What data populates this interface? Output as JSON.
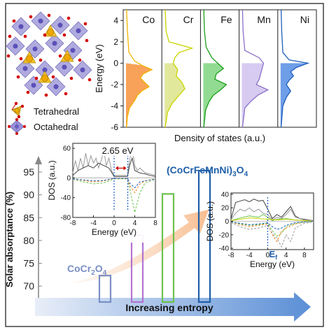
{
  "figure": {
    "frame_color": "#333333",
    "structure_legend": [
      {
        "label": "Tetrahedral",
        "color": "#e8b020",
        "icon": "tetrahedron-icon"
      },
      {
        "label": "Octahedral",
        "color": "#7a6fc4",
        "icon": "octahedron-icon"
      }
    ]
  },
  "chart_data": [
    {
      "type": "line",
      "title": "",
      "xlabel": "Density of states (a.u.)",
      "ylabel": "Energy (eV)",
      "ylim": [
        -6,
        5
      ],
      "yticks": [
        4,
        2,
        0,
        -2,
        -4,
        -6
      ],
      "panels": [
        {
          "name": "Co",
          "color": "#f0b400",
          "fill": "#f58220",
          "energy": [
            5,
            3,
            1,
            0.2,
            -0.2,
            -0.6,
            -1.0,
            -1.4,
            -1.8,
            -2.2,
            -2.6,
            -3.0,
            -3.5,
            -4.2,
            -5,
            -6
          ],
          "dos": [
            0.02,
            0.05,
            0.1,
            0.3,
            0.55,
            0.9,
            0.6,
            0.5,
            0.65,
            0.8,
            0.55,
            0.4,
            0.3,
            0.12,
            0.05,
            0.02
          ]
        },
        {
          "name": "Cr",
          "color": "#c8d400",
          "fill": "#d8e07a",
          "energy": [
            5,
            3,
            2,
            1.4,
            1.0,
            0.5,
            0,
            -0.6,
            -1.2,
            -1.8,
            -2.4,
            -3.0,
            -3.8,
            -4.6,
            -6
          ],
          "dos": [
            0.02,
            0.05,
            0.15,
            0.95,
            0.5,
            0.35,
            0.3,
            0.45,
            0.4,
            0.6,
            0.7,
            0.5,
            0.25,
            0.1,
            0.02
          ]
        },
        {
          "name": "Fe",
          "color": "#1a9e1a",
          "fill": "#6ecf6e",
          "energy": [
            5,
            3,
            1.5,
            0.5,
            0,
            -0.5,
            -1.0,
            -1.5,
            -2.0,
            -2.5,
            -3.0,
            -3.6,
            -4.4,
            -6
          ],
          "dos": [
            0.02,
            0.04,
            0.1,
            0.3,
            0.5,
            0.7,
            0.45,
            0.4,
            0.8,
            0.6,
            0.35,
            0.2,
            0.08,
            0.02
          ]
        },
        {
          "name": "Mn",
          "color": "#8a6fc8",
          "fill": "#c9b9ec",
          "energy": [
            5,
            3,
            1.2,
            0.5,
            0,
            -0.5,
            -1.0,
            -1.5,
            -2.0,
            -2.5,
            -3.0,
            -3.6,
            -4.2,
            -6
          ],
          "dos": [
            0.02,
            0.04,
            0.1,
            0.6,
            0.75,
            0.7,
            0.65,
            0.6,
            0.5,
            0.9,
            0.55,
            0.3,
            0.1,
            0.02
          ]
        },
        {
          "name": "Ni",
          "color": "#1f5fbf",
          "fill": "#3d7de0",
          "energy": [
            5,
            3,
            1.0,
            0.3,
            0,
            -0.4,
            -0.8,
            -1.2,
            -1.6,
            -2.0,
            -2.6,
            -3.2,
            -4.0,
            -6
          ],
          "dos": [
            0.02,
            0.04,
            0.08,
            0.3,
            0.95,
            0.55,
            0.35,
            0.45,
            0.3,
            0.2,
            0.35,
            0.2,
            0.08,
            0.02
          ]
        }
      ]
    },
    {
      "type": "bar",
      "title": "",
      "ylabel": "Solar absorptance (%)",
      "xlabel": "",
      "ylim": [
        66.5,
        97
      ],
      "yticks": [
        95,
        90,
        85,
        80,
        75,
        70
      ],
      "categories": [
        "CoCr2O4",
        "",
        "",
        "(CoCrFeMnNi)3O4"
      ],
      "labels": [
        {
          "text": "CoCr",
          "sub": "2",
          "text2": "O",
          "sub2": "4",
          "color": "#7a8fc4"
        },
        {
          "text": "(CoCrFeMnNi)",
          "sub": "3",
          "text2": "O",
          "sub2": "4",
          "color": "#1f5fa8"
        }
      ],
      "values": [
        72.3,
        81.1,
        90.2,
        95.3
      ],
      "colors": [
        "#7a8fc4",
        "#b373d1",
        "#6cc24a",
        "#1f5fa8"
      ],
      "arrow_label": "Increasing entropy"
    },
    {
      "type": "line",
      "title": "",
      "xlabel": "Energy (eV)",
      "ylabel": "DOS (a.u.)",
      "xlim": [
        -8,
        8
      ],
      "ylim": [
        -80,
        70
      ],
      "xticks": [
        -8,
        -4,
        0,
        4,
        8
      ],
      "yticks": [
        60,
        0,
        -40,
        -80
      ],
      "annotation": "2.65 eV",
      "series": [
        {
          "color": "#999999",
          "dash": false,
          "x": [
            -8,
            -7.5,
            -7,
            -6.5,
            -6,
            -5.5,
            -5,
            -4.5,
            -4,
            -3.5,
            -3,
            -2.5,
            -2,
            -1.5,
            -1,
            -0.5,
            0,
            2.6,
            3,
            3.5,
            4,
            4.5,
            5,
            6,
            7,
            8
          ],
          "y": [
            10,
            35,
            15,
            40,
            20,
            50,
            25,
            45,
            30,
            40,
            20,
            35,
            55,
            25,
            40,
            15,
            5,
            5,
            35,
            60,
            25,
            15,
            20,
            10,
            8,
            5
          ]
        },
        {
          "color": "#444444",
          "dash": false,
          "x": [
            -8,
            -7,
            -6,
            -5,
            -4,
            -3,
            -2,
            -1,
            0,
            2.6,
            3,
            3.5,
            4,
            5,
            6,
            7,
            8
          ],
          "y": [
            5,
            15,
            20,
            25,
            20,
            30,
            25,
            20,
            3,
            3,
            25,
            40,
            15,
            10,
            8,
            5,
            3
          ]
        },
        {
          "color": "#6cc24a",
          "dash": true,
          "x": [
            -8,
            -6,
            -4,
            -2,
            0,
            2.6,
            3,
            3.5,
            4,
            5,
            6,
            8
          ],
          "y": [
            -3,
            -8,
            -12,
            -10,
            -2,
            -2,
            -20,
            -45,
            -70,
            -30,
            -10,
            -3
          ]
        },
        {
          "color": "#f58220",
          "dash": true,
          "x": [
            -8,
            -6,
            -4,
            -2,
            0,
            2.6,
            3,
            4,
            5,
            6,
            8
          ],
          "y": [
            -2,
            -5,
            -8,
            -6,
            -1,
            -1,
            -15,
            -30,
            -12,
            -6,
            -2
          ]
        },
        {
          "color": "#1f5fbf",
          "dash": true,
          "x": [
            -8,
            -6,
            -4,
            -2,
            0,
            2.6,
            3,
            4,
            5,
            8
          ],
          "y": [
            -2,
            -4,
            -6,
            -5,
            -1,
            -1,
            -10,
            -20,
            -8,
            -2
          ]
        }
      ]
    },
    {
      "type": "line",
      "title": "",
      "xlabel": "Energy (eV)",
      "ylabel": "DOS (a.u.)",
      "xlim": [
        -8,
        10
      ],
      "ylim": [
        -42,
        42
      ],
      "xticks": [
        -8,
        -4,
        0,
        4,
        8
      ],
      "yticks": [
        40,
        20,
        0,
        -20,
        -40
      ],
      "annotation": "E",
      "annotation_sub": "f",
      "series": [
        {
          "color": "#444444",
          "dash": false,
          "x": [
            -8,
            -7,
            -6,
            -5,
            -4,
            -3,
            -2,
            -1,
            0,
            1,
            2,
            3,
            4,
            5,
            6,
            7,
            8,
            9,
            10
          ],
          "y": [
            3,
            28,
            30,
            32,
            29,
            33,
            30,
            31,
            18,
            4,
            10,
            6,
            14,
            22,
            8,
            4,
            3,
            2,
            1
          ]
        },
        {
          "color": "#999999",
          "dash": false,
          "x": [
            -8,
            -7,
            -6,
            -5,
            -4,
            -3,
            -2,
            -1,
            0,
            1,
            2,
            3,
            4,
            5,
            6,
            8,
            10
          ],
          "y": [
            2,
            12,
            18,
            15,
            20,
            14,
            18,
            12,
            10,
            2,
            6,
            4,
            10,
            18,
            6,
            2,
            1
          ]
        },
        {
          "color": "#6cc24a",
          "dash": false,
          "x": [
            -8,
            -6,
            -4,
            -2,
            -1,
            0,
            1,
            2,
            4,
            6,
            8,
            10
          ],
          "y": [
            1,
            5,
            8,
            6,
            10,
            6,
            1,
            3,
            4,
            2,
            1,
            0
          ]
        },
        {
          "color": "#c8d400",
          "dash": false,
          "x": [
            -8,
            -6,
            -4,
            -2,
            0,
            2,
            4,
            6,
            8,
            10
          ],
          "y": [
            1,
            3,
            5,
            4,
            3,
            2,
            3,
            2,
            1,
            0
          ]
        },
        {
          "color": "#f58220",
          "dash": true,
          "x": [
            -8,
            -6,
            -4,
            -2,
            0,
            1,
            2,
            3,
            4,
            6,
            8,
            10
          ],
          "y": [
            -1,
            -5,
            -8,
            -6,
            -4,
            -20,
            -30,
            -15,
            -10,
            -4,
            -1,
            0
          ]
        },
        {
          "color": "#6cc24a",
          "dash": true,
          "x": [
            -8,
            -6,
            -4,
            -2,
            0,
            1,
            2,
            3,
            4,
            6,
            8,
            10
          ],
          "y": [
            -1,
            -4,
            -6,
            -5,
            -3,
            -14,
            -22,
            -18,
            -8,
            -3,
            -1,
            0
          ]
        },
        {
          "color": "#1f5fbf",
          "dash": true,
          "x": [
            -8,
            -6,
            -4,
            -2,
            0,
            1,
            2,
            3,
            4,
            6,
            8,
            10
          ],
          "y": [
            -1,
            -3,
            -5,
            -4,
            -2,
            -8,
            -12,
            -10,
            -6,
            -2,
            -1,
            0
          ]
        },
        {
          "color": "#999999",
          "dash": true,
          "x": [
            -8,
            -6,
            -4,
            -2,
            0,
            1,
            2,
            3,
            4,
            5,
            6,
            8,
            10
          ],
          "y": [
            -2,
            -8,
            -12,
            -10,
            -6,
            -18,
            -25,
            -38,
            -20,
            -30,
            -10,
            -3,
            -1
          ]
        }
      ]
    }
  ]
}
